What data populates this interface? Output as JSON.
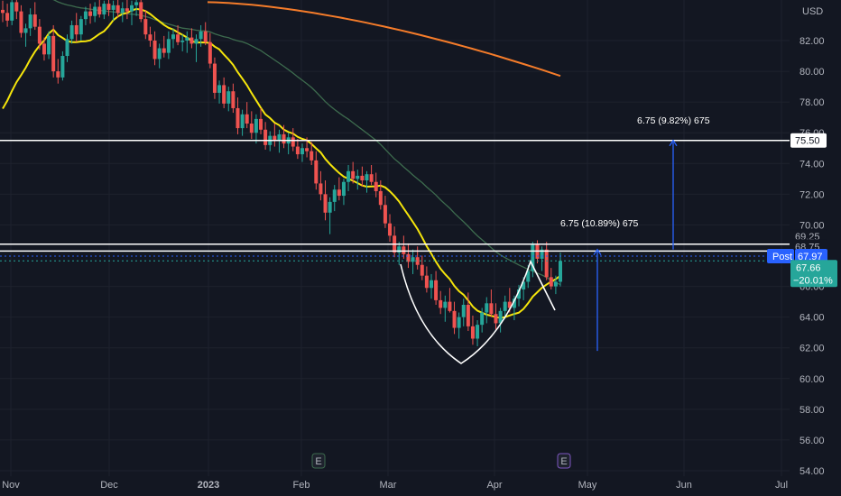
{
  "chart_data": {
    "type": "candlestick",
    "currency": "USD",
    "ylim": [
      54,
      84
    ],
    "y_ticks": [
      "82.00",
      "80.00",
      "78.00",
      "76.00",
      "74.00",
      "72.00",
      "70.00",
      "66.00",
      "64.00",
      "62.00",
      "60.00",
      "58.00",
      "56.00",
      "54.00"
    ],
    "x_labels": [
      "Nov",
      "Dec",
      "2023",
      "Feb",
      "Mar",
      "Apr",
      "May",
      "Jun",
      "Jul"
    ],
    "price_tags": {
      "level_upper": "75.50",
      "level_mid_1": "69.25",
      "level_mid_2": "68.75",
      "post_label": "Post",
      "post_price": "67.97",
      "last_price": "67.66",
      "change_pct": "−20.01%"
    },
    "horizontal_levels": [
      75.5,
      68.75,
      68.3
    ],
    "annotations": {
      "upper_measure": "6.75 (9.82%) 675",
      "lower_measure": "6.75 (10.89%) 675"
    },
    "event_markers": [
      "E",
      "E"
    ],
    "colors": {
      "up": "#26a69a",
      "down": "#ef5350",
      "ma_fast": "#f5e50b",
      "ma_mid": "#3d6b4e",
      "ma_slow": "#f57c2a",
      "projection": "#2962ff",
      "level": "#ffffff",
      "post_tag": "#2962ff",
      "last_tag": "#26a69a"
    },
    "candles": [
      [
        84.0,
        84.6,
        83.2,
        83.8
      ],
      [
        83.8,
        84.4,
        82.9,
        83.3
      ],
      [
        83.3,
        84.8,
        83.0,
        84.5
      ],
      [
        84.5,
        85.0,
        83.4,
        83.9
      ],
      [
        83.9,
        84.3,
        82.2,
        82.5
      ],
      [
        82.5,
        83.1,
        81.6,
        82.8
      ],
      [
        82.8,
        84.1,
        82.3,
        83.7
      ],
      [
        83.7,
        84.5,
        82.7,
        82.9
      ],
      [
        82.9,
        83.4,
        81.4,
        81.8
      ],
      [
        81.8,
        82.2,
        80.7,
        81.1
      ],
      [
        81.1,
        82.6,
        80.8,
        82.3
      ],
      [
        82.3,
        83.0,
        79.6,
        80.0
      ],
      [
        80.0,
        80.8,
        79.2,
        79.6
      ],
      [
        79.6,
        81.3,
        79.4,
        81.0
      ],
      [
        81.0,
        82.4,
        80.6,
        82.1
      ],
      [
        82.1,
        83.3,
        81.8,
        83.0
      ],
      [
        83.0,
        83.8,
        81.9,
        82.4
      ],
      [
        82.4,
        83.6,
        82.0,
        83.4
      ],
      [
        83.4,
        84.2,
        83.0,
        83.9
      ],
      [
        83.9,
        84.4,
        83.1,
        83.6
      ],
      [
        83.6,
        84.5,
        83.2,
        84.2
      ],
      [
        84.2,
        84.9,
        83.5,
        83.7
      ],
      [
        83.7,
        84.6,
        83.4,
        84.4
      ],
      [
        84.4,
        84.9,
        83.6,
        84.0
      ],
      [
        84.0,
        84.6,
        83.3,
        84.3
      ],
      [
        84.3,
        84.8,
        83.5,
        83.8
      ],
      [
        83.8,
        84.5,
        83.2,
        84.1
      ],
      [
        84.1,
        84.7,
        83.4,
        83.9
      ],
      [
        83.9,
        84.6,
        83.0,
        84.3
      ],
      [
        84.3,
        84.9,
        83.6,
        84.5
      ],
      [
        84.5,
        85.0,
        83.2,
        83.4
      ],
      [
        83.4,
        84.0,
        82.1,
        82.4
      ],
      [
        82.4,
        82.9,
        81.6,
        82.0
      ],
      [
        82.0,
        82.6,
        80.4,
        80.8
      ],
      [
        80.8,
        81.8,
        80.2,
        81.5
      ],
      [
        81.5,
        82.3,
        80.9,
        81.2
      ],
      [
        81.2,
        82.6,
        80.8,
        82.1
      ],
      [
        82.1,
        82.8,
        81.5,
        82.4
      ],
      [
        82.4,
        83.0,
        81.7,
        81.9
      ],
      [
        81.9,
        82.4,
        81.3,
        82.0
      ],
      [
        82.0,
        82.6,
        81.2,
        82.2
      ],
      [
        82.2,
        82.8,
        81.5,
        81.8
      ],
      [
        81.8,
        82.4,
        80.6,
        82.1
      ],
      [
        82.1,
        83.0,
        81.6,
        82.6
      ],
      [
        82.6,
        83.2,
        81.7,
        81.9
      ],
      [
        81.9,
        82.5,
        80.2,
        80.5
      ],
      [
        80.5,
        80.9,
        78.2,
        78.6
      ],
      [
        78.6,
        79.4,
        77.9,
        79.1
      ],
      [
        79.1,
        79.6,
        77.6,
        77.9
      ],
      [
        77.9,
        79.0,
        77.4,
        78.7
      ],
      [
        78.7,
        79.2,
        77.3,
        77.6
      ],
      [
        77.6,
        78.3,
        75.9,
        76.3
      ],
      [
        76.3,
        77.5,
        75.8,
        77.2
      ],
      [
        77.2,
        78.0,
        76.3,
        76.6
      ],
      [
        76.6,
        77.4,
        75.6,
        76.0
      ],
      [
        76.0,
        77.2,
        75.3,
        76.9
      ],
      [
        76.9,
        77.6,
        75.9,
        76.2
      ],
      [
        76.2,
        76.7,
        74.9,
        75.2
      ],
      [
        75.2,
        76.1,
        74.8,
        75.8
      ],
      [
        75.8,
        76.6,
        75.1,
        75.5
      ],
      [
        75.5,
        76.2,
        74.7,
        75.9
      ],
      [
        75.9,
        76.5,
        75.0,
        75.3
      ],
      [
        75.3,
        76.0,
        74.6,
        75.7
      ],
      [
        75.7,
        76.3,
        74.8,
        75.1
      ],
      [
        75.1,
        75.6,
        74.3,
        74.6
      ],
      [
        74.6,
        75.3,
        74.1,
        75.0
      ],
      [
        75.0,
        75.7,
        74.4,
        74.8
      ],
      [
        74.8,
        75.4,
        73.9,
        74.2
      ],
      [
        74.2,
        74.8,
        72.3,
        72.7
      ],
      [
        72.7,
        73.5,
        71.6,
        72.0
      ],
      [
        72.0,
        72.9,
        70.3,
        70.8
      ],
      [
        70.8,
        71.8,
        69.4,
        71.5
      ],
      [
        71.5,
        72.6,
        70.9,
        72.3
      ],
      [
        72.3,
        73.1,
        71.6,
        71.9
      ],
      [
        71.9,
        73.0,
        71.3,
        72.8
      ],
      [
        72.8,
        73.9,
        72.2,
        73.5
      ],
      [
        73.5,
        74.1,
        72.7,
        73.0
      ],
      [
        73.0,
        73.6,
        72.3,
        73.2
      ],
      [
        73.2,
        73.8,
        72.5,
        72.9
      ],
      [
        72.9,
        73.5,
        72.1,
        73.3
      ],
      [
        73.3,
        73.9,
        72.6,
        72.8
      ],
      [
        72.8,
        73.4,
        71.8,
        72.2
      ],
      [
        72.2,
        72.9,
        71.0,
        71.3
      ],
      [
        71.3,
        71.9,
        69.8,
        70.1
      ],
      [
        70.1,
        70.7,
        68.9,
        69.3
      ],
      [
        69.3,
        69.9,
        67.9,
        68.2
      ],
      [
        68.2,
        68.9,
        67.4,
        68.6
      ],
      [
        68.6,
        69.3,
        67.8,
        68.1
      ],
      [
        68.1,
        68.8,
        67.2,
        67.6
      ],
      [
        67.6,
        68.4,
        66.8,
        67.9
      ],
      [
        67.9,
        68.6,
        67.1,
        67.4
      ],
      [
        67.4,
        68.0,
        66.4,
        66.7
      ],
      [
        66.7,
        67.3,
        65.6,
        65.9
      ],
      [
        65.9,
        66.8,
        65.2,
        66.4
      ],
      [
        66.4,
        67.0,
        64.8,
        65.1
      ],
      [
        65.1,
        65.7,
        64.2,
        64.6
      ],
      [
        64.6,
        65.4,
        63.7,
        65.0
      ],
      [
        65.0,
        65.9,
        64.3,
        64.4
      ],
      [
        64.4,
        65.0,
        62.9,
        63.3
      ],
      [
        63.3,
        64.3,
        62.6,
        64.0
      ],
      [
        64.0,
        65.2,
        63.4,
        64.8
      ],
      [
        64.8,
        65.6,
        63.1,
        63.4
      ],
      [
        63.4,
        64.1,
        62.2,
        62.6
      ],
      [
        62.6,
        63.8,
        62.1,
        63.5
      ],
      [
        63.5,
        64.6,
        63.0,
        64.3
      ],
      [
        64.3,
        65.3,
        63.6,
        64.9
      ],
      [
        64.9,
        65.8,
        64.0,
        64.2
      ],
      [
        64.2,
        64.9,
        63.2,
        63.6
      ],
      [
        63.6,
        64.6,
        63.0,
        64.4
      ],
      [
        64.4,
        65.4,
        63.9,
        65.0
      ],
      [
        65.0,
        65.9,
        64.3,
        64.6
      ],
      [
        64.6,
        65.4,
        63.8,
        65.2
      ],
      [
        65.2,
        66.1,
        64.7,
        65.8
      ],
      [
        65.8,
        66.6,
        65.1,
        66.3
      ],
      [
        66.3,
        67.4,
        65.9,
        67.0
      ],
      [
        67.0,
        68.9,
        66.6,
        68.7
      ],
      [
        68.7,
        69.0,
        67.5,
        67.8
      ],
      [
        67.8,
        68.6,
        67.0,
        68.4
      ],
      [
        68.4,
        68.9,
        66.4,
        66.6
      ],
      [
        66.6,
        67.2,
        65.8,
        66.0
      ],
      [
        66.0,
        66.7,
        65.5,
        66.3
      ],
      [
        66.3,
        68.2,
        66.0,
        67.66
      ]
    ]
  }
}
